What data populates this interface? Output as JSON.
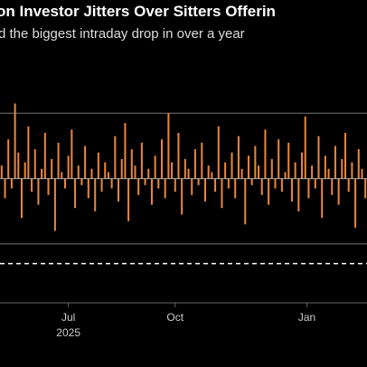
{
  "chart_data": {
    "type": "bar",
    "title": "on Investor Jitters Over Sitters Offerin",
    "subtitle": "d the biggest intraday drop in over a year",
    "color": "#e8863c",
    "x": [
      0,
      1,
      2,
      3,
      4,
      5,
      6,
      7,
      8,
      9,
      10,
      11,
      12,
      13,
      14,
      15,
      16,
      17,
      18,
      19,
      20,
      21,
      22,
      23,
      24,
      25,
      26,
      27,
      28,
      29,
      30,
      31,
      32,
      33,
      34,
      35,
      36,
      37,
      38,
      39,
      40,
      41,
      42,
      43,
      44,
      45,
      46,
      47,
      48,
      49,
      50,
      51,
      52,
      53,
      54,
      55,
      56,
      57,
      58,
      59,
      60,
      61,
      62,
      63,
      64,
      65,
      66,
      67,
      68,
      69,
      70,
      71,
      72,
      73,
      74,
      75,
      76,
      77,
      78,
      79,
      80,
      81,
      82,
      83,
      84,
      85,
      86,
      87,
      88,
      89,
      90,
      91,
      92,
      93,
      94,
      95,
      96,
      97,
      98,
      99,
      100,
      101,
      102,
      103,
      104,
      105,
      106,
      107,
      108,
      109
    ],
    "values": [
      0.4,
      -0.6,
      1.2,
      -0.3,
      2.3,
      0.8,
      -1.2,
      0.5,
      1.6,
      -0.4,
      0.9,
      -0.8,
      0.3,
      1.4,
      -0.5,
      0.6,
      -1.6,
      1.1,
      0.2,
      -0.3,
      0.7,
      1.5,
      -0.9,
      0.4,
      -0.2,
      1.0,
      -0.6,
      0.3,
      -1.0,
      0.8,
      -0.4,
      0.5,
      0.2,
      -0.3,
      1.3,
      -0.7,
      0.6,
      1.7,
      -1.3,
      0.9,
      0.4,
      -0.5,
      1.1,
      -0.2,
      0.3,
      -0.8,
      0.7,
      -0.3,
      1.2,
      -0.6,
      2.0,
      0.5,
      -0.4,
      1.4,
      -1.1,
      0.6,
      0.3,
      -0.5,
      0.9,
      -0.2,
      1.1,
      -0.7,
      0.4,
      0.2,
      -0.4,
      1.6,
      -0.9,
      0.5,
      -0.3,
      0.8,
      -0.6,
      1.3,
      0.3,
      -1.4,
      0.7,
      -0.2,
      1.0,
      0.4,
      -0.5,
      1.5,
      -0.8,
      0.6,
      -0.3,
      1.2,
      -0.4,
      0.2,
      1.1,
      -0.7,
      0.5,
      -1.0,
      0.8,
      1.9,
      -0.6,
      0.4,
      -0.3,
      1.3,
      -1.2,
      0.7,
      0.3,
      -0.5,
      1.0,
      -0.8,
      0.6,
      1.4,
      -0.4,
      0.5,
      -1.5,
      0.9,
      0.3,
      -0.6
    ],
    "xlim": [
      -0.5,
      109.5
    ],
    "ylim": [
      -3.8,
      2.7
    ],
    "xticks": [
      {
        "value": 20,
        "label": "Jul"
      },
      {
        "value": 52,
        "label": "Oct"
      },
      {
        "value": 91.5,
        "label": "Jan"
      }
    ],
    "year_label": {
      "value": 20,
      "label": "2025"
    },
    "reference_lines": [
      2,
      -2
    ],
    "dashed_line": -2.6
  }
}
